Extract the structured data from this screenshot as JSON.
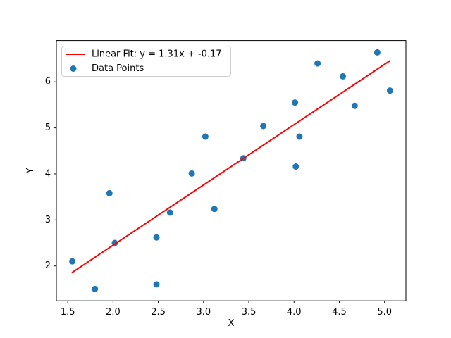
{
  "figure": {
    "background": "#ffffff",
    "frame_color": "#000000"
  },
  "chart_data": {
    "type": "scatter",
    "title": "",
    "xlabel": "X",
    "ylabel": "Y",
    "xlim": [
      1.374,
      5.236
    ],
    "ylim": [
      1.243,
      6.897
    ],
    "grid": false,
    "xticks": [
      {
        "value": 1.5,
        "label": "1.5"
      },
      {
        "value": 2.0,
        "label": "2.0"
      },
      {
        "value": 2.5,
        "label": "2.5"
      },
      {
        "value": 3.0,
        "label": "3.0"
      },
      {
        "value": 3.5,
        "label": "3.5"
      },
      {
        "value": 4.0,
        "label": "4.0"
      },
      {
        "value": 4.5,
        "label": "4.5"
      },
      {
        "value": 5.0,
        "label": "5.0"
      }
    ],
    "yticks": [
      {
        "value": 2,
        "label": "2"
      },
      {
        "value": 3,
        "label": "3"
      },
      {
        "value": 4,
        "label": "4"
      },
      {
        "value": 5,
        "label": "5"
      },
      {
        "value": 6,
        "label": "6"
      }
    ],
    "legend": {
      "position": "upper left",
      "border_color": "#cccccc",
      "background": "#ffffff",
      "entries": [
        {
          "label": "Linear Fit: y = 1.31x + -0.17",
          "glyph": "line-sample",
          "color": "#ff0000"
        },
        {
          "label": "Data Points",
          "glyph": "marker-sample",
          "color": "#1f77b4"
        }
      ]
    },
    "series": [
      {
        "name": "Data Points",
        "type": "scatter",
        "color": "#1f77b4",
        "marker_radius": 4.5,
        "points": [
          [
            1.55,
            2.1
          ],
          [
            1.8,
            1.5
          ],
          [
            1.96,
            3.58
          ],
          [
            2.02,
            2.5
          ],
          [
            2.48,
            2.62
          ],
          [
            2.48,
            1.6
          ],
          [
            2.63,
            3.16
          ],
          [
            2.87,
            4.01
          ],
          [
            3.02,
            4.81
          ],
          [
            3.12,
            3.24
          ],
          [
            3.44,
            4.34
          ],
          [
            3.66,
            5.04
          ],
          [
            4.01,
            5.55
          ],
          [
            4.02,
            4.16
          ],
          [
            4.06,
            4.81
          ],
          [
            4.26,
            6.4
          ],
          [
            4.54,
            6.12
          ],
          [
            4.67,
            5.48
          ],
          [
            4.92,
            6.64
          ],
          [
            5.06,
            5.81
          ]
        ]
      },
      {
        "name": "Linear Fit",
        "type": "line",
        "color": "#ff0000",
        "slope": 1.31,
        "intercept": -0.17,
        "x_range": [
          1.55,
          5.06
        ],
        "line_width": 2
      }
    ]
  }
}
